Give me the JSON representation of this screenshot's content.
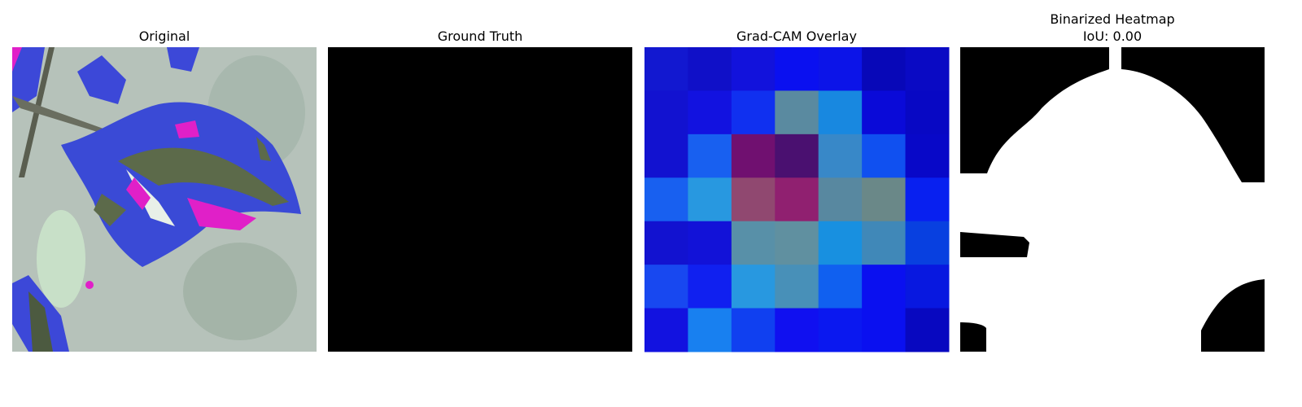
{
  "panels": [
    {
      "title": "Original"
    },
    {
      "title": "Ground Truth"
    },
    {
      "title": "Grad-CAM Overlay"
    },
    {
      "title": [
        "Binarized Heatmap",
        "IoU: 0.00"
      ]
    }
  ]
}
